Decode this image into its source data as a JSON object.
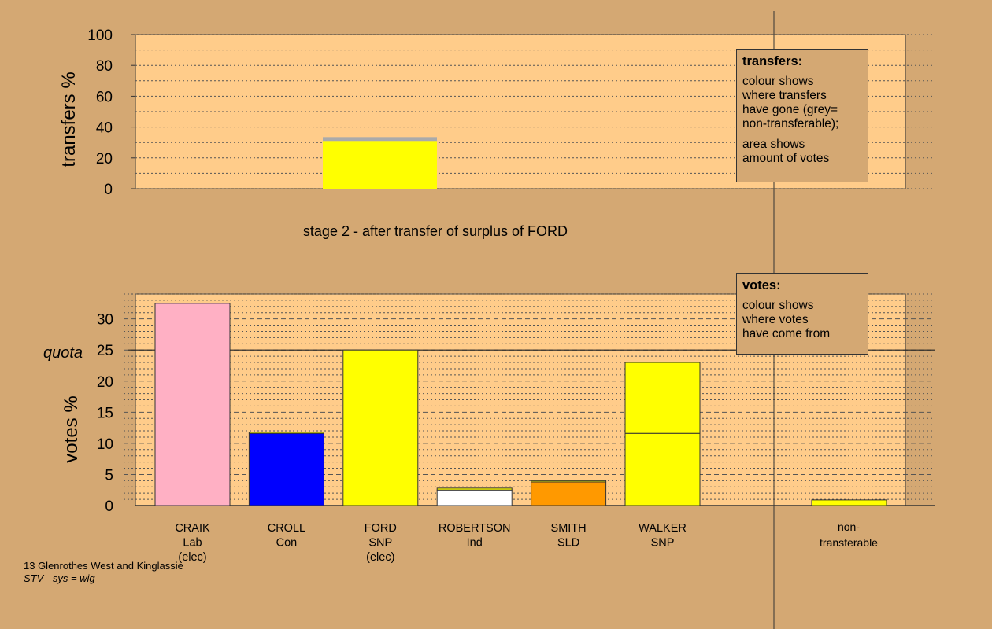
{
  "chart_data": [
    {
      "type": "bar",
      "stacked": true,
      "ylabel": "transfers %",
      "ylim": [
        0,
        100
      ],
      "yticks": [
        0,
        20,
        40,
        60,
        80,
        100
      ],
      "caption": "stage 2 - after transfer of surplus of FORD",
      "bars": [
        {
          "segments": [
            {
              "value": 31,
              "color": "#ffff00"
            },
            {
              "value": 2.5,
              "color": "#aaaaaa"
            }
          ]
        }
      ],
      "legend": {
        "title": "transfers:",
        "lines": [
          "colour shows",
          "where transfers",
          "have gone (grey=",
          "non-transferable);"
        ],
        "lines2": [
          "area shows",
          "amount of votes"
        ]
      }
    },
    {
      "type": "bar",
      "stacked": true,
      "ylabel": "votes %",
      "ylim": [
        0,
        34
      ],
      "yticks": [
        0,
        5,
        10,
        15,
        20,
        25,
        30
      ],
      "quota": {
        "label": "quota",
        "value": 25
      },
      "categories": [
        {
          "name": "CRAIK",
          "party": "Lab",
          "status": "(elec)",
          "segments": [
            {
              "value": 32.5,
              "color": "#ffb0c4"
            }
          ]
        },
        {
          "name": "CROLL",
          "party": "Con",
          "status": "",
          "segments": [
            {
              "value": 11.6,
              "color": "#0000ff"
            },
            {
              "value": 0.2,
              "color": "#ffff00"
            }
          ]
        },
        {
          "name": "FORD",
          "party": "SNP",
          "status": "(elec)",
          "segments": [
            {
              "value": 25,
              "color": "#ffff00"
            }
          ]
        },
        {
          "name": "ROBERTSON",
          "party": "Ind",
          "status": "",
          "segments": [
            {
              "value": 2.5,
              "color": "#ffffff"
            },
            {
              "value": 0.3,
              "color": "#ffff00"
            }
          ]
        },
        {
          "name": "SMITH",
          "party": "SLD",
          "status": "",
          "segments": [
            {
              "value": 3.8,
              "color": "#ff9900"
            },
            {
              "value": 0.2,
              "color": "#ffff00"
            }
          ]
        },
        {
          "name": "WALKER",
          "party": "SNP",
          "status": "",
          "segments": [
            {
              "value": 11.6,
              "color": "#ffff00"
            },
            {
              "value": 11.4,
              "color": "#ffff00"
            }
          ]
        }
      ],
      "nontransferable": {
        "label_1": "non-",
        "label_2": "transferable",
        "value": 0.9,
        "color": "#ffff00"
      },
      "legend": {
        "title": "votes:",
        "lines": [
          "colour shows",
          "where votes",
          "have come from"
        ]
      }
    }
  ],
  "footer": {
    "ward": "13 Glenrothes West and Kinglassie",
    "system": "STV - sys = wig"
  },
  "colors": {
    "background": "#d4a873",
    "plot": "#ffcc8a"
  }
}
